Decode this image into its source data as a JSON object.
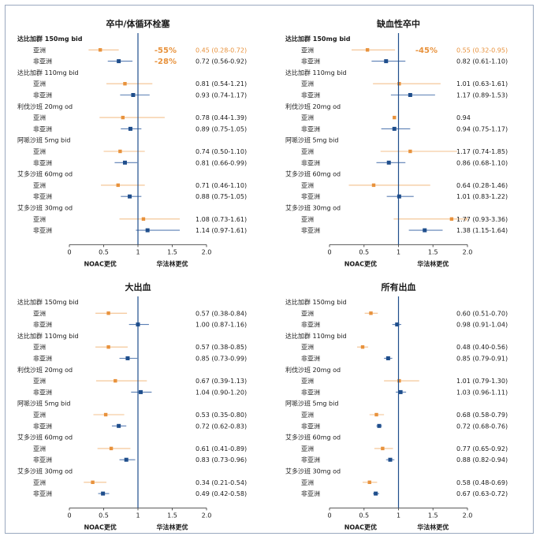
{
  "chart_data": [
    {
      "type": "forest",
      "title": "卒中/体循环栓塞",
      "xlim": [
        0,
        2.0
      ],
      "ticks": [
        "0",
        "0.5",
        "1",
        "1.5",
        "2.0"
      ],
      "footer_left": "NOAC更优",
      "footer_right": "华法林更优",
      "groups": [
        {
          "drug": "达比加群 150mg bid",
          "bold": true,
          "rows": [
            {
              "region": "亚洲",
              "hr": 0.45,
              "lo": 0.28,
              "hi": 0.72,
              "label": "0.45 (0.28-0.72)",
              "pct": "-55%",
              "highlight": true
            },
            {
              "region": "非亚洲",
              "hr": 0.72,
              "lo": 0.56,
              "hi": 0.92,
              "label": "0.72 (0.56-0.92)",
              "pct": "-28%"
            }
          ]
        },
        {
          "drug": "达比加群 110mg bid",
          "rows": [
            {
              "region": "亚洲",
              "hr": 0.81,
              "lo": 0.54,
              "hi": 1.21,
              "label": "0.81 (0.54-1.21)"
            },
            {
              "region": "非亚洲",
              "hr": 0.93,
              "lo": 0.74,
              "hi": 1.17,
              "label": "0.93 (0.74-1.17)"
            }
          ]
        },
        {
          "drug": "利伐沙班 20mg od",
          "rows": [
            {
              "region": "亚洲",
              "hr": 0.78,
              "lo": 0.44,
              "hi": 1.39,
              "label": "0.78 (0.44-1.39)"
            },
            {
              "region": "非亚洲",
              "hr": 0.89,
              "lo": 0.75,
              "hi": 1.05,
              "label": "0.89 (0.75-1.05)"
            }
          ]
        },
        {
          "drug": "阿哌沙班 5mg bid",
          "rows": [
            {
              "region": "亚洲",
              "hr": 0.74,
              "lo": 0.5,
              "hi": 1.1,
              "label": "0.74 (0.50-1.10)"
            },
            {
              "region": "非亚洲",
              "hr": 0.81,
              "lo": 0.66,
              "hi": 0.99,
              "label": "0.81 (0.66-0.99)"
            }
          ]
        },
        {
          "drug": "艾多沙班 60mg od",
          "rows": [
            {
              "region": "亚洲",
              "hr": 0.71,
              "lo": 0.46,
              "hi": 1.1,
              "label": "0.71 (0.46-1.10)"
            },
            {
              "region": "非亚洲",
              "hr": 0.88,
              "lo": 0.75,
              "hi": 1.05,
              "label": "0.88 (0.75-1.05)"
            }
          ]
        },
        {
          "drug": "艾多沙班 30mg od",
          "rows": [
            {
              "region": "亚洲",
              "hr": 1.08,
              "lo": 0.73,
              "hi": 1.61,
              "label": "1.08 (0.73-1.61)"
            },
            {
              "region": "非亚洲",
              "hr": 1.14,
              "lo": 0.97,
              "hi": 1.61,
              "label": "1.14 (0.97-1.61)"
            }
          ]
        }
      ]
    },
    {
      "type": "forest",
      "title": "缺血性卒中",
      "xlim": [
        0,
        2.0
      ],
      "ticks": [
        "0",
        "0.5",
        "1",
        "1.5",
        "2.0"
      ],
      "footer_left": "NOAC更优",
      "footer_right": "华法林更优",
      "groups": [
        {
          "drug": "达比加群 150mg bid",
          "bold": true,
          "rows": [
            {
              "region": "亚洲",
              "hr": 0.55,
              "lo": 0.32,
              "hi": 0.95,
              "label": "0.55 (0.32-0.95)",
              "pct": "-45%",
              "highlight": true
            },
            {
              "region": "非亚洲",
              "hr": 0.82,
              "lo": 0.61,
              "hi": 1.1,
              "label": "0.82 (0.61-1.10)"
            }
          ]
        },
        {
          "drug": "达比加群 110mg bid",
          "rows": [
            {
              "region": "亚洲",
              "hr": 1.01,
              "lo": 0.63,
              "hi": 1.61,
              "label": "1.01 (0.63-1.61)"
            },
            {
              "region": "非亚洲",
              "hr": 1.17,
              "lo": 0.89,
              "hi": 1.53,
              "label": "1.17 (0.89-1.53)"
            }
          ]
        },
        {
          "drug": "利伐沙班 20mg od",
          "rows": [
            {
              "region": "亚洲",
              "hr": 0.94,
              "label": "0.94"
            },
            {
              "region": "非亚洲",
              "hr": 0.94,
              "lo": 0.75,
              "hi": 1.17,
              "label": "0.94 (0.75-1.17)"
            }
          ]
        },
        {
          "drug": "阿哌沙班 5mg bid",
          "rows": [
            {
              "region": "亚洲",
              "hr": 1.17,
              "lo": 0.74,
              "hi": 1.85,
              "label": "1.17 (0.74-1.85)"
            },
            {
              "region": "非亚洲",
              "hr": 0.86,
              "lo": 0.68,
              "hi": 1.1,
              "label": "0.86 (0.68-1.10)"
            }
          ]
        },
        {
          "drug": "艾多沙班 60mg od",
          "rows": [
            {
              "region": "亚洲",
              "hr": 0.64,
              "lo": 0.28,
              "hi": 1.46,
              "label": "0.64 (0.28-1.46)"
            },
            {
              "region": "非亚洲",
              "hr": 1.01,
              "lo": 0.83,
              "hi": 1.22,
              "label": "1.01 (0.83-1.22)"
            }
          ]
        },
        {
          "drug": "艾多沙班 30mg od",
          "rows": [
            {
              "region": "亚洲",
              "hr": 1.77,
              "lo": 0.93,
              "hi": 3.36,
              "label": "1.77 (0.93-3.36)"
            },
            {
              "region": "非亚洲",
              "hr": 1.38,
              "lo": 1.15,
              "hi": 1.64,
              "label": "1.38 (1.15-1.64)"
            }
          ]
        }
      ]
    },
    {
      "type": "forest",
      "title": "大出血",
      "xlim": [
        0,
        2.0
      ],
      "ticks": [
        "0",
        "0.5",
        "1",
        "1.5",
        "2.0"
      ],
      "footer_left": "NOAC更优",
      "footer_right": "华法林更优",
      "groups": [
        {
          "drug": "达比加群 150mg bid",
          "rows": [
            {
              "region": "亚洲",
              "hr": 0.57,
              "lo": 0.38,
              "hi": 0.84,
              "label": "0.57 (0.38-0.84)"
            },
            {
              "region": "非亚洲",
              "hr": 1.0,
              "lo": 0.87,
              "hi": 1.16,
              "label": "1.00 (0.87-1.16)"
            }
          ]
        },
        {
          "drug": "达比加群 110mg bid",
          "rows": [
            {
              "region": "亚洲",
              "hr": 0.57,
              "lo": 0.38,
              "hi": 0.85,
              "label": "0.57 (0.38-0.85)"
            },
            {
              "region": "非亚洲",
              "hr": 0.85,
              "lo": 0.73,
              "hi": 0.99,
              "label": "0.85 (0.73-0.99)"
            }
          ]
        },
        {
          "drug": "利伐沙班 20mg od",
          "rows": [
            {
              "region": "亚洲",
              "hr": 0.67,
              "lo": 0.39,
              "hi": 1.13,
              "label": "0.67 (0.39-1.13)"
            },
            {
              "region": "非亚洲",
              "hr": 1.04,
              "lo": 0.9,
              "hi": 1.2,
              "label": "1.04 (0.90-1.20)"
            }
          ]
        },
        {
          "drug": "阿哌沙班 5mg bid",
          "rows": [
            {
              "region": "亚洲",
              "hr": 0.53,
              "lo": 0.35,
              "hi": 0.8,
              "label": "0.53 (0.35-0.80)"
            },
            {
              "region": "非亚洲",
              "hr": 0.72,
              "lo": 0.62,
              "hi": 0.83,
              "label": "0.72 (0.62-0.83)"
            }
          ]
        },
        {
          "drug": "艾多沙班 60mg od",
          "rows": [
            {
              "region": "亚洲",
              "hr": 0.61,
              "lo": 0.41,
              "hi": 0.89,
              "label": "0.61 (0.41-0.89)"
            },
            {
              "region": "非亚洲",
              "hr": 0.83,
              "lo": 0.73,
              "hi": 0.96,
              "label": "0.83 (0.73-0.96)"
            }
          ]
        },
        {
          "drug": "艾多沙班 30mg od",
          "rows": [
            {
              "region": "亚洲",
              "hr": 0.34,
              "lo": 0.21,
              "hi": 0.54,
              "label": "0.34 (0.21-0.54)"
            },
            {
              "region": "非亚洲",
              "hr": 0.49,
              "lo": 0.42,
              "hi": 0.58,
              "label": "0.49 (0.42-0.58)"
            }
          ]
        }
      ]
    },
    {
      "type": "forest",
      "title": "所有出血",
      "xlim": [
        0,
        2.0
      ],
      "ticks": [
        "0",
        "0.5",
        "1",
        "1.5",
        "2.0"
      ],
      "footer_left": "NOAC更优",
      "footer_right": "华法林更优",
      "groups": [
        {
          "drug": "达比加群 150mg bid",
          "rows": [
            {
              "region": "亚洲",
              "hr": 0.6,
              "lo": 0.51,
              "hi": 0.7,
              "label": "0.60 (0.51-0.70)"
            },
            {
              "region": "非亚洲",
              "hr": 0.98,
              "lo": 0.91,
              "hi": 1.04,
              "label": "0.98 (0.91-1.04)"
            }
          ]
        },
        {
          "drug": "达比加群 110mg bid",
          "rows": [
            {
              "region": "亚洲",
              "hr": 0.48,
              "lo": 0.4,
              "hi": 0.56,
              "label": "0.48 (0.40-0.56)"
            },
            {
              "region": "非亚洲",
              "hr": 0.85,
              "lo": 0.79,
              "hi": 0.91,
              "label": "0.85 (0.79-0.91)"
            }
          ]
        },
        {
          "drug": "利伐沙班 20mg od",
          "rows": [
            {
              "region": "亚洲",
              "hr": 1.01,
              "lo": 0.79,
              "hi": 1.3,
              "label": "1.01 (0.79-1.30)"
            },
            {
              "region": "非亚洲",
              "hr": 1.03,
              "lo": 0.96,
              "hi": 1.11,
              "label": "1.03 (0.96-1.11)"
            }
          ]
        },
        {
          "drug": "阿哌沙班 5mg bid",
          "rows": [
            {
              "region": "亚洲",
              "hr": 0.68,
              "lo": 0.58,
              "hi": 0.79,
              "label": "0.68 (0.58-0.79)"
            },
            {
              "region": "非亚洲",
              "hr": 0.72,
              "lo": 0.68,
              "hi": 0.76,
              "label": "0.72 (0.68-0.76)"
            }
          ]
        },
        {
          "drug": "艾多沙班 60mg od",
          "rows": [
            {
              "region": "亚洲",
              "hr": 0.77,
              "lo": 0.65,
              "hi": 0.92,
              "label": "0.77 (0.65-0.92)"
            },
            {
              "region": "非亚洲",
              "hr": 0.88,
              "lo": 0.82,
              "hi": 0.94,
              "label": "0.88 (0.82-0.94)"
            }
          ]
        },
        {
          "drug": "艾多沙班 30mg od",
          "rows": [
            {
              "region": "亚洲",
              "hr": 0.58,
              "lo": 0.48,
              "hi": 0.69,
              "label": "0.58 (0.48-0.69)"
            },
            {
              "region": "非亚洲",
              "hr": 0.67,
              "lo": 0.63,
              "hi": 0.72,
              "label": "0.67 (0.63-0.72)"
            }
          ]
        }
      ]
    }
  ],
  "colors": {
    "asia": "#e8923c",
    "non_asia": "#1f4e8c",
    "ci_asia": "#f3c08e",
    "ci_non_asia": "#5b7fb4",
    "reference": "#1f4e8c",
    "axis": "#555555",
    "frame": "#9aa9bf"
  }
}
